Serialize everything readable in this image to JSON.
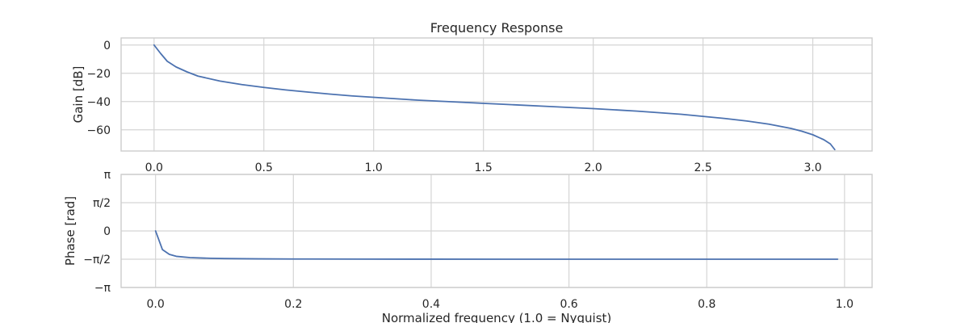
{
  "colors": {
    "line": "#4c72b0"
  },
  "chart_data": [
    {
      "type": "line",
      "title": "Frequency Response",
      "xlabel": "",
      "ylabel": "Gain [dB]",
      "xlim": [
        -0.15,
        3.27
      ],
      "ylim": [
        -75,
        5
      ],
      "grid": true,
      "xticks": [
        {
          "value": 0.0,
          "label": "0.0"
        },
        {
          "value": 0.5,
          "label": "0.5"
        },
        {
          "value": 1.0,
          "label": "1.0"
        },
        {
          "value": 1.5,
          "label": "1.5"
        },
        {
          "value": 2.0,
          "label": "2.0"
        },
        {
          "value": 2.5,
          "label": "2.5"
        },
        {
          "value": 3.0,
          "label": "3.0"
        }
      ],
      "yticks": [
        {
          "value": 0,
          "label": "0"
        },
        {
          "value": -20,
          "label": "−20"
        },
        {
          "value": -40,
          "label": "−40"
        },
        {
          "value": -60,
          "label": "−60"
        }
      ],
      "series": [
        {
          "x": [
            0,
            0.03,
            0.06,
            0.1,
            0.15,
            0.2,
            0.3,
            0.4,
            0.5,
            0.6,
            0.7,
            0.8,
            0.9,
            1.0,
            1.2,
            1.4,
            1.5,
            1.6,
            1.8,
            2.0,
            2.2,
            2.4,
            2.5,
            2.6,
            2.7,
            2.8,
            2.9,
            2.95,
            3.0,
            3.05,
            3.08,
            3.1
          ],
          "y": [
            0,
            -6,
            -11.5,
            -15.5,
            -19,
            -22,
            -25.5,
            -28,
            -30,
            -31.8,
            -33.3,
            -34.7,
            -36,
            -37,
            -39,
            -40.5,
            -41.3,
            -42,
            -43.5,
            -45,
            -46.8,
            -49,
            -50.5,
            -52,
            -53.8,
            -56,
            -59,
            -61,
            -63.5,
            -67,
            -70,
            -74
          ]
        }
      ]
    },
    {
      "type": "line",
      "title": "",
      "xlabel": "Normalized frequency (1.0 = Nyquist)",
      "ylabel": "Phase [rad]",
      "xlim": [
        -0.05,
        1.04
      ],
      "ylim": [
        -3.1416,
        3.1416
      ],
      "grid": true,
      "xticks": [
        {
          "value": 0.0,
          "label": "0.0"
        },
        {
          "value": 0.2,
          "label": "0.2"
        },
        {
          "value": 0.4,
          "label": "0.4"
        },
        {
          "value": 0.6,
          "label": "0.6"
        },
        {
          "value": 0.8,
          "label": "0.8"
        },
        {
          "value": 1.0,
          "label": "1.0"
        }
      ],
      "yticks": [
        {
          "value": 3.1416,
          "label": "π"
        },
        {
          "value": 1.5708,
          "label": "π/2"
        },
        {
          "value": 0,
          "label": "0"
        },
        {
          "value": -1.5708,
          "label": "−π/2"
        },
        {
          "value": -3.1416,
          "label": "−π"
        }
      ],
      "series": [
        {
          "x": [
            0,
            0.01,
            0.02,
            0.03,
            0.05,
            0.08,
            0.1,
            0.15,
            0.2,
            0.3,
            0.4,
            0.6,
            0.8,
            0.99
          ],
          "y": [
            0,
            -1.04,
            -1.3,
            -1.41,
            -1.48,
            -1.52,
            -1.535,
            -1.55,
            -1.56,
            -1.565,
            -1.568,
            -1.57,
            -1.57,
            -1.57
          ]
        }
      ]
    }
  ]
}
